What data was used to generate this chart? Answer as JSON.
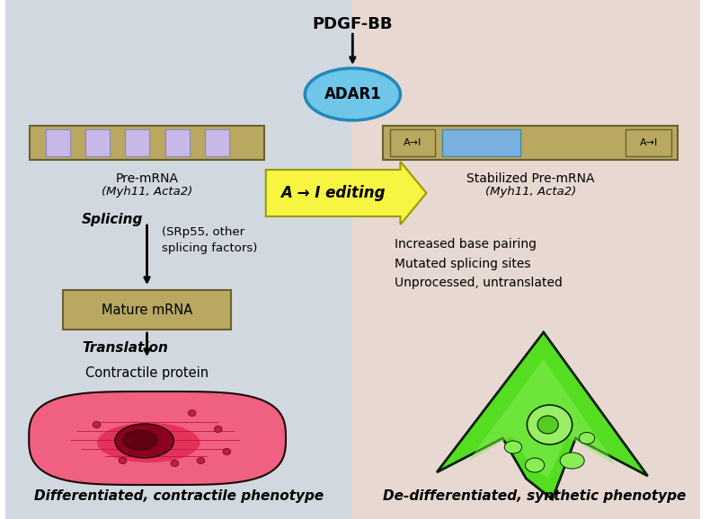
{
  "bg_left_color": "#d2d8df",
  "bg_right_color": "#e8d8d2",
  "title_text": "PDGF-BB",
  "adar1_label": "ADAR1",
  "adar1_color": "#6ec6e8",
  "adar1_border": "#2288bb",
  "arrow_label": "A → I editing",
  "arrow_fill": "#f5f542",
  "pre_mrna_label1": "Pre-mRNA",
  "pre_mrna_label2": "(Myh11, Acta2)",
  "stab_mrna_label1": "Stabilized Pre-mRNA",
  "stab_mrna_label2": "(Myh11, Acta2)",
  "splicing_label": "Splicing",
  "splicing_note": "(SRp55, other\nsplicing factors)",
  "mature_mrna_label": "Mature mRNA",
  "translation_label": "Translation",
  "contractile_label": "Contractile protein",
  "right_notes": "Increased base pairing\nMutated splicing sites\nUnprocessed, untranslated",
  "bottom_left_label": "Differentiated, contractile phenotype",
  "bottom_right_label": "De-differentiated, synthetic phenotype",
  "mrna_bar_color": "#b8a860",
  "mrna_exon_color": "#c8b8e8",
  "stab_exon_color": "#7ab0e0",
  "mature_box_color": "#b8a860"
}
